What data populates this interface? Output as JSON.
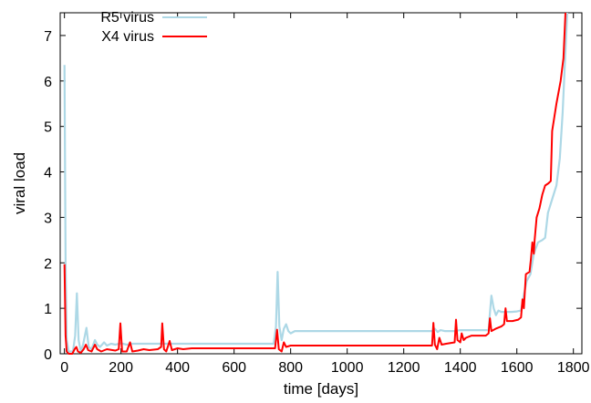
{
  "chart_data": {
    "type": "line",
    "title": "",
    "xlabel": "time [days]",
    "ylabel": "viral load",
    "xlim": [
      -15,
      1830
    ],
    "ylim": [
      0,
      7.5
    ],
    "xticks": [
      0,
      200,
      400,
      600,
      800,
      1000,
      1200,
      1400,
      1600,
      1800
    ],
    "yticks": [
      0,
      1,
      2,
      3,
      4,
      5,
      6,
      7
    ],
    "grid": false,
    "legend_position": "top-left",
    "series": [
      {
        "name": "R5 virus",
        "color": "#add8e6",
        "points": [
          [
            0,
            6.35
          ],
          [
            4,
            2.0
          ],
          [
            8,
            0.3
          ],
          [
            15,
            0.05
          ],
          [
            30,
            0.05
          ],
          [
            38,
            0.4
          ],
          [
            44,
            1.33
          ],
          [
            50,
            0.3
          ],
          [
            58,
            0.05
          ],
          [
            66,
            0.2
          ],
          [
            78,
            0.57
          ],
          [
            86,
            0.15
          ],
          [
            96,
            0.1
          ],
          [
            108,
            0.3
          ],
          [
            116,
            0.2
          ],
          [
            126,
            0.15
          ],
          [
            140,
            0.25
          ],
          [
            150,
            0.18
          ],
          [
            165,
            0.22
          ],
          [
            180,
            0.2
          ],
          [
            200,
            0.23
          ],
          [
            220,
            0.2
          ],
          [
            240,
            0.22
          ],
          [
            300,
            0.22
          ],
          [
            400,
            0.22
          ],
          [
            500,
            0.22
          ],
          [
            600,
            0.22
          ],
          [
            740,
            0.22
          ],
          [
            748,
            0.6
          ],
          [
            754,
            1.8
          ],
          [
            760,
            0.6
          ],
          [
            768,
            0.3
          ],
          [
            776,
            0.55
          ],
          [
            784,
            0.65
          ],
          [
            792,
            0.5
          ],
          [
            800,
            0.45
          ],
          [
            815,
            0.5
          ],
          [
            900,
            0.5
          ],
          [
            1000,
            0.5
          ],
          [
            1100,
            0.5
          ],
          [
            1200,
            0.5
          ],
          [
            1300,
            0.5
          ],
          [
            1310,
            0.55
          ],
          [
            1320,
            0.48
          ],
          [
            1330,
            0.52
          ],
          [
            1345,
            0.5
          ],
          [
            1380,
            0.5
          ],
          [
            1400,
            0.52
          ],
          [
            1450,
            0.52
          ],
          [
            1500,
            0.52
          ],
          [
            1505,
            0.9
          ],
          [
            1510,
            1.28
          ],
          [
            1518,
            1.0
          ],
          [
            1526,
            0.85
          ],
          [
            1535,
            0.95
          ],
          [
            1545,
            0.92
          ],
          [
            1560,
            0.92
          ],
          [
            1580,
            0.92
          ],
          [
            1600,
            0.93
          ],
          [
            1615,
            0.95
          ],
          [
            1625,
            1.3
          ],
          [
            1635,
            1.6
          ],
          [
            1648,
            1.75
          ],
          [
            1660,
            2.2
          ],
          [
            1675,
            2.45
          ],
          [
            1690,
            2.5
          ],
          [
            1700,
            2.55
          ],
          [
            1710,
            3.1
          ],
          [
            1725,
            3.4
          ],
          [
            1740,
            3.7
          ],
          [
            1752,
            4.3
          ],
          [
            1762,
            5.3
          ],
          [
            1770,
            6.4
          ],
          [
            1778,
            7.5
          ]
        ]
      },
      {
        "name": "X4 virus",
        "color": "#ff0000",
        "points": [
          [
            0,
            1.97
          ],
          [
            4,
            0.4
          ],
          [
            8,
            0.05
          ],
          [
            15,
            0.0
          ],
          [
            28,
            0.0
          ],
          [
            36,
            0.1
          ],
          [
            42,
            0.15
          ],
          [
            48,
            0.05
          ],
          [
            58,
            0.02
          ],
          [
            68,
            0.1
          ],
          [
            76,
            0.2
          ],
          [
            84,
            0.08
          ],
          [
            96,
            0.05
          ],
          [
            108,
            0.2
          ],
          [
            116,
            0.1
          ],
          [
            130,
            0.05
          ],
          [
            150,
            0.1
          ],
          [
            180,
            0.07
          ],
          [
            192,
            0.1
          ],
          [
            198,
            0.67
          ],
          [
            204,
            0.05
          ],
          [
            220,
            0.05
          ],
          [
            232,
            0.25
          ],
          [
            240,
            0.05
          ],
          [
            260,
            0.07
          ],
          [
            280,
            0.1
          ],
          [
            300,
            0.08
          ],
          [
            330,
            0.1
          ],
          [
            342,
            0.15
          ],
          [
            346,
            0.67
          ],
          [
            352,
            0.1
          ],
          [
            360,
            0.05
          ],
          [
            372,
            0.28
          ],
          [
            380,
            0.08
          ],
          [
            400,
            0.12
          ],
          [
            420,
            0.1
          ],
          [
            450,
            0.12
          ],
          [
            500,
            0.12
          ],
          [
            600,
            0.12
          ],
          [
            700,
            0.12
          ],
          [
            745,
            0.12
          ],
          [
            752,
            0.53
          ],
          [
            758,
            0.1
          ],
          [
            768,
            0.05
          ],
          [
            776,
            0.25
          ],
          [
            784,
            0.15
          ],
          [
            800,
            0.18
          ],
          [
            900,
            0.18
          ],
          [
            1000,
            0.18
          ],
          [
            1100,
            0.18
          ],
          [
            1200,
            0.18
          ],
          [
            1300,
            0.18
          ],
          [
            1305,
            0.68
          ],
          [
            1310,
            0.2
          ],
          [
            1318,
            0.1
          ],
          [
            1326,
            0.35
          ],
          [
            1334,
            0.2
          ],
          [
            1350,
            0.22
          ],
          [
            1380,
            0.25
          ],
          [
            1385,
            0.75
          ],
          [
            1390,
            0.3
          ],
          [
            1400,
            0.25
          ],
          [
            1405,
            0.45
          ],
          [
            1412,
            0.3
          ],
          [
            1420,
            0.35
          ],
          [
            1440,
            0.4
          ],
          [
            1470,
            0.4
          ],
          [
            1490,
            0.4
          ],
          [
            1500,
            0.45
          ],
          [
            1505,
            0.78
          ],
          [
            1510,
            0.5
          ],
          [
            1525,
            0.55
          ],
          [
            1545,
            0.6
          ],
          [
            1555,
            0.65
          ],
          [
            1560,
            1.0
          ],
          [
            1565,
            0.72
          ],
          [
            1585,
            0.72
          ],
          [
            1605,
            0.75
          ],
          [
            1615,
            0.8
          ],
          [
            1620,
            1.2
          ],
          [
            1625,
            1.0
          ],
          [
            1632,
            1.75
          ],
          [
            1645,
            1.8
          ],
          [
            1650,
            2.1
          ],
          [
            1655,
            2.45
          ],
          [
            1660,
            2.2
          ],
          [
            1663,
            2.5
          ],
          [
            1670,
            3.0
          ],
          [
            1680,
            3.2
          ],
          [
            1690,
            3.5
          ],
          [
            1700,
            3.7
          ],
          [
            1712,
            3.75
          ],
          [
            1720,
            3.8
          ],
          [
            1725,
            4.9
          ],
          [
            1740,
            5.5
          ],
          [
            1755,
            6.0
          ],
          [
            1765,
            6.5
          ],
          [
            1772,
            7.5
          ]
        ]
      }
    ]
  }
}
